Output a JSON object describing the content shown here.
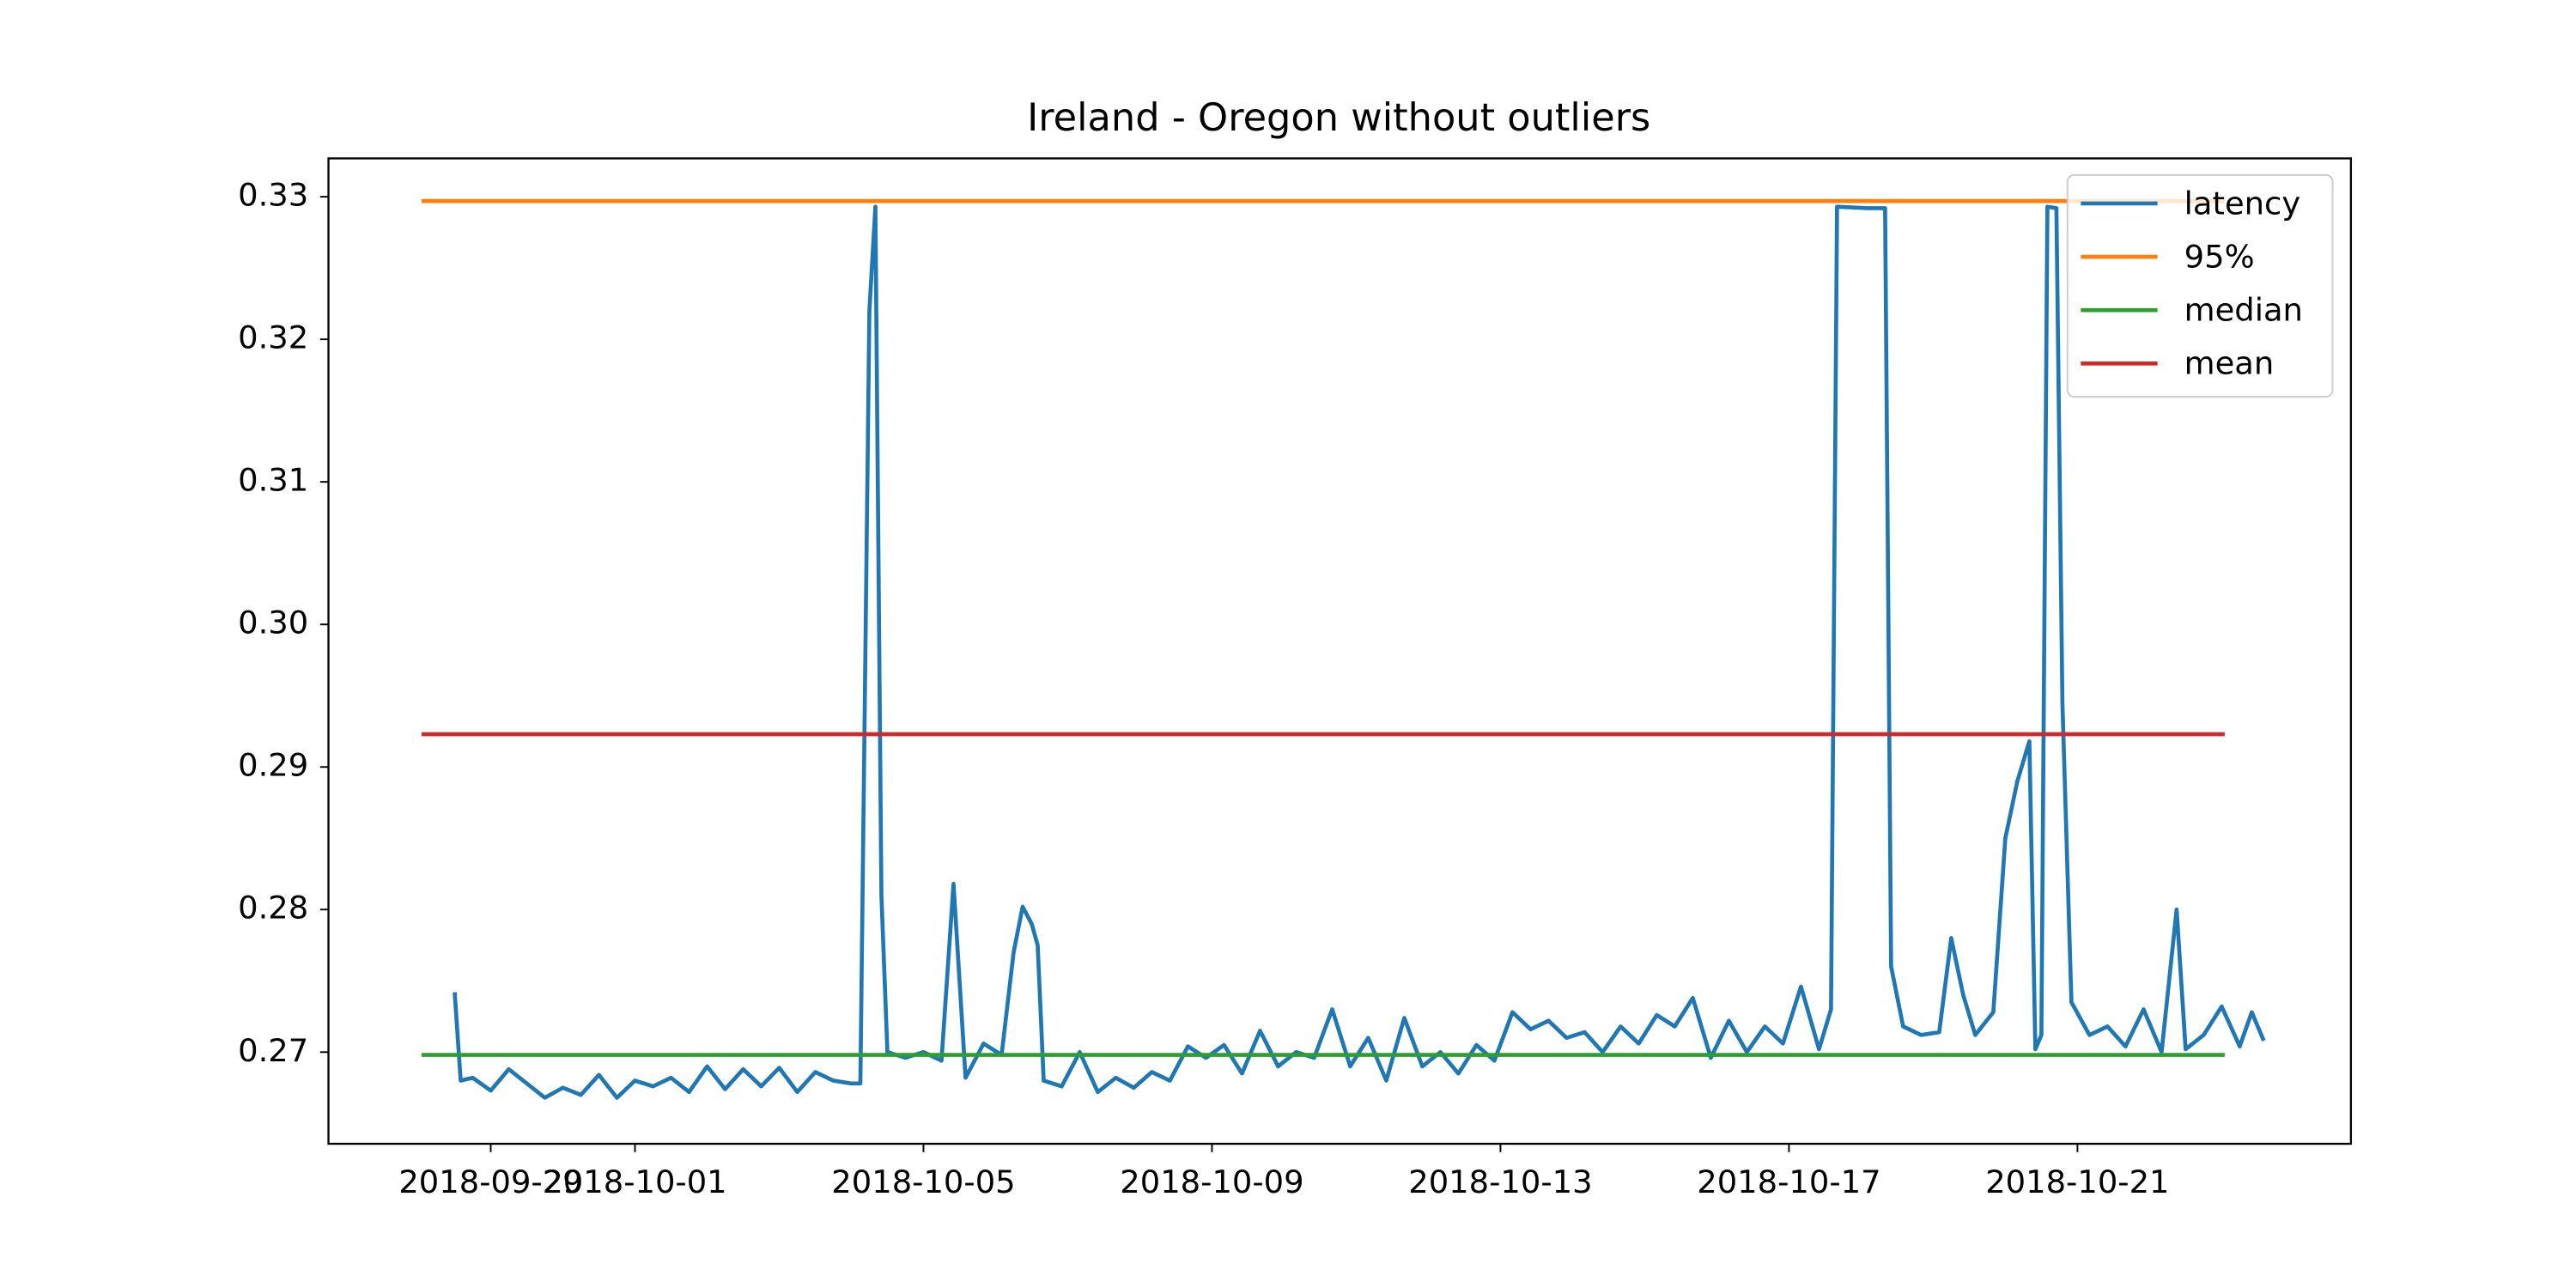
{
  "chart_data": {
    "type": "line",
    "title": "Ireland - Oregon without outliers",
    "series": [
      {
        "name": "latency",
        "color": "#1f77b4",
        "x": [
          "2018-09-28 12:00",
          "2018-09-28 14:00",
          "2018-09-28 18:00",
          "2018-09-29 00:00",
          "2018-09-29 06:00",
          "2018-09-29 12:00",
          "2018-09-29 18:00",
          "2018-09-30 00:00",
          "2018-09-30 06:00",
          "2018-09-30 12:00",
          "2018-09-30 18:00",
          "2018-10-01 00:00",
          "2018-10-01 06:00",
          "2018-10-01 12:00",
          "2018-10-01 18:00",
          "2018-10-02 00:00",
          "2018-10-02 06:00",
          "2018-10-02 12:00",
          "2018-10-02 18:00",
          "2018-10-03 00:00",
          "2018-10-03 06:00",
          "2018-10-03 12:00",
          "2018-10-03 18:00",
          "2018-10-04 00:00",
          "2018-10-04 03:00",
          "2018-10-04 06:00",
          "2018-10-04 08:00",
          "2018-10-04 10:00",
          "2018-10-04 12:00",
          "2018-10-04 18:00",
          "2018-10-05 00:00",
          "2018-10-05 06:00",
          "2018-10-05 10:00",
          "2018-10-05 14:00",
          "2018-10-05 20:00",
          "2018-10-06 02:00",
          "2018-10-06 06:00",
          "2018-10-06 09:00",
          "2018-10-06 12:00",
          "2018-10-06 14:00",
          "2018-10-06 16:00",
          "2018-10-06 22:00",
          "2018-10-07 04:00",
          "2018-10-07 10:00",
          "2018-10-07 16:00",
          "2018-10-07 22:00",
          "2018-10-08 04:00",
          "2018-10-08 10:00",
          "2018-10-08 16:00",
          "2018-10-08 22:00",
          "2018-10-09 04:00",
          "2018-10-09 10:00",
          "2018-10-09 16:00",
          "2018-10-09 22:00",
          "2018-10-10 04:00",
          "2018-10-10 10:00",
          "2018-10-10 16:00",
          "2018-10-10 22:00",
          "2018-10-11 04:00",
          "2018-10-11 10:00",
          "2018-10-11 16:00",
          "2018-10-11 22:00",
          "2018-10-12 04:00",
          "2018-10-12 10:00",
          "2018-10-12 16:00",
          "2018-10-12 22:00",
          "2018-10-13 04:00",
          "2018-10-13 10:00",
          "2018-10-13 16:00",
          "2018-10-13 22:00",
          "2018-10-14 04:00",
          "2018-10-14 10:00",
          "2018-10-14 16:00",
          "2018-10-14 22:00",
          "2018-10-15 04:00",
          "2018-10-15 10:00",
          "2018-10-15 16:00",
          "2018-10-15 22:00",
          "2018-10-16 04:00",
          "2018-10-16 10:00",
          "2018-10-16 16:00",
          "2018-10-16 22:00",
          "2018-10-17 04:00",
          "2018-10-17 10:00",
          "2018-10-17 14:00",
          "2018-10-17 16:00",
          "2018-10-18 02:00",
          "2018-10-18 08:00",
          "2018-10-18 10:00",
          "2018-10-18 14:00",
          "2018-10-18 20:00",
          "2018-10-19 02:00",
          "2018-10-19 06:00",
          "2018-10-19 10:00",
          "2018-10-19 14:00",
          "2018-10-19 20:00",
          "2018-10-20 00:00",
          "2018-10-20 04:00",
          "2018-10-20 08:00",
          "2018-10-20 10:00",
          "2018-10-20 12:00",
          "2018-10-20 14:00",
          "2018-10-20 17:00",
          "2018-10-20 19:00",
          "2018-10-20 22:00",
          "2018-10-21 04:00",
          "2018-10-21 10:00",
          "2018-10-21 16:00",
          "2018-10-21 22:00",
          "2018-10-22 04:00",
          "2018-10-22 09:00",
          "2018-10-22 12:00",
          "2018-10-22 18:00",
          "2018-10-23 00:00",
          "2018-10-23 06:00",
          "2018-10-23 10:00",
          "2018-10-23 14:00"
        ],
        "values": [
          0.2742,
          0.268,
          0.2682,
          0.2673,
          0.2688,
          0.2678,
          0.2668,
          0.2675,
          0.267,
          0.2684,
          0.2668,
          0.268,
          0.2676,
          0.2682,
          0.2672,
          0.269,
          0.2674,
          0.2688,
          0.2676,
          0.2689,
          0.2672,
          0.2686,
          0.268,
          0.2678,
          0.2678,
          0.322,
          0.3293,
          0.281,
          0.27,
          0.2696,
          0.27,
          0.2694,
          0.2818,
          0.2682,
          0.2706,
          0.2698,
          0.277,
          0.2802,
          0.279,
          0.2775,
          0.268,
          0.2676,
          0.27,
          0.2672,
          0.2682,
          0.2675,
          0.2686,
          0.268,
          0.2704,
          0.2696,
          0.2705,
          0.2685,
          0.2715,
          0.269,
          0.27,
          0.2696,
          0.273,
          0.269,
          0.271,
          0.268,
          0.2724,
          0.269,
          0.27,
          0.2685,
          0.2705,
          0.2694,
          0.2728,
          0.2716,
          0.2722,
          0.271,
          0.2714,
          0.27,
          0.2718,
          0.2706,
          0.2726,
          0.2718,
          0.2738,
          0.2696,
          0.2722,
          0.27,
          0.2718,
          0.2706,
          0.2746,
          0.2702,
          0.273,
          0.3293,
          0.3292,
          0.3292,
          0.276,
          0.2718,
          0.2712,
          0.2714,
          0.278,
          0.274,
          0.2712,
          0.2728,
          0.285,
          0.289,
          0.2918,
          0.2702,
          0.2712,
          0.3293,
          0.3292,
          0.2945,
          0.2735,
          0.2712,
          0.2718,
          0.2704,
          0.273,
          0.27,
          0.28,
          0.2702,
          0.2712,
          0.2732,
          0.2704,
          0.2728,
          0.2708
        ]
      },
      {
        "name": "95%",
        "color": "#ff7f0e",
        "x": [
          "2018-09-28 01:00",
          "2018-10-23 01:00"
        ],
        "values": [
          0.3297,
          0.3297
        ]
      },
      {
        "name": "median",
        "color": "#2ca02c",
        "x": [
          "2018-09-28 01:00",
          "2018-10-23 01:00"
        ],
        "values": [
          0.2698,
          0.2698
        ]
      },
      {
        "name": "mean",
        "color": "#d62728",
        "x": [
          "2018-09-28 01:00",
          "2018-10-23 01:00"
        ],
        "values": [
          0.2923,
          0.2923
        ]
      }
    ],
    "xlim": [
      "2018-09-26 18:00",
      "2018-10-24 19:00"
    ],
    "xticks": [
      "2018-09-29",
      "2018-10-01",
      "2018-10-05",
      "2018-10-09",
      "2018-10-13",
      "2018-10-17",
      "2018-10-21"
    ],
    "ylim": [
      0.26357,
      0.33269
    ],
    "yticks": [
      0.27,
      0.28,
      0.29,
      0.3,
      0.31,
      0.32,
      0.33
    ],
    "yticklabels": [
      "0.27",
      "0.28",
      "0.29",
      "0.30",
      "0.31",
      "0.32",
      "0.33"
    ],
    "legend": "upper right"
  }
}
